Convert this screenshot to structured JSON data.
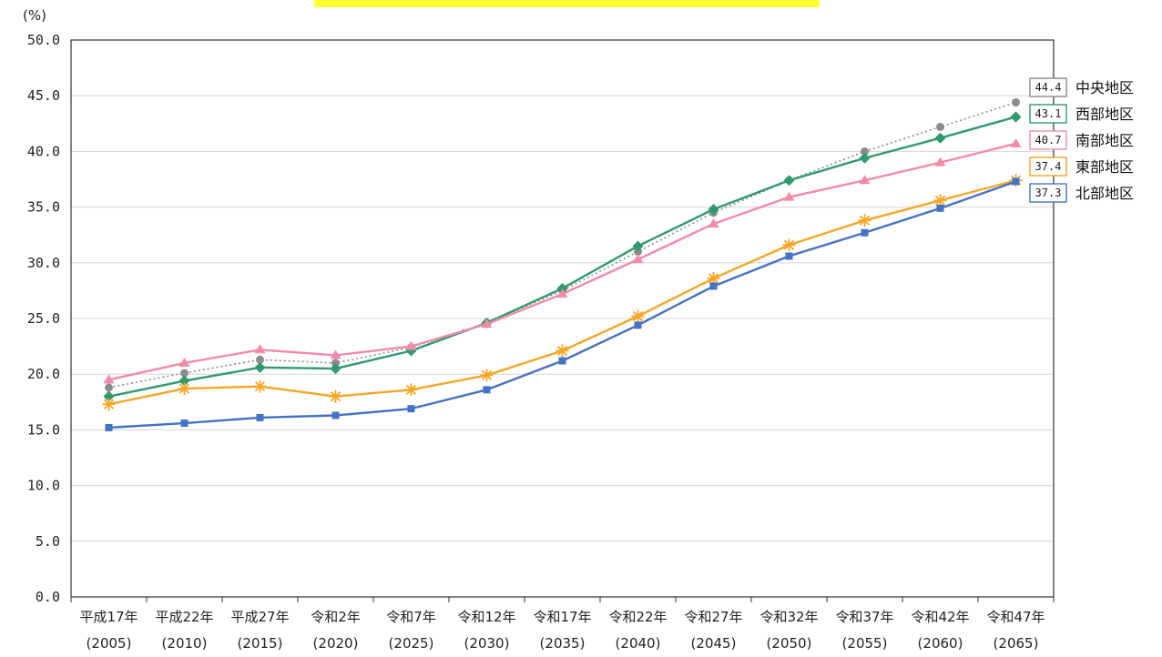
{
  "highlight_color": "#ffff33",
  "chart_data": {
    "type": "line",
    "unit_label": "(%)",
    "ylim": [
      0,
      50
    ],
    "y_ticks": [
      "0.0",
      "5.0",
      "10.0",
      "15.0",
      "20.0",
      "25.0",
      "30.0",
      "35.0",
      "40.0",
      "45.0",
      "50.0"
    ],
    "categories": [
      {
        "era": "平成17年",
        "year": "(2005)"
      },
      {
        "era": "平成22年",
        "year": "(2010)"
      },
      {
        "era": "平成27年",
        "year": "(2015)"
      },
      {
        "era": "令和2年",
        "year": "(2020)"
      },
      {
        "era": "令和7年",
        "year": "(2025)"
      },
      {
        "era": "令和12年",
        "year": "(2030)"
      },
      {
        "era": "令和17年",
        "year": "(2035)"
      },
      {
        "era": "令和22年",
        "year": "(2040)"
      },
      {
        "era": "令和27年",
        "year": "(2045)"
      },
      {
        "era": "令和32年",
        "year": "(2050)"
      },
      {
        "era": "令和37年",
        "year": "(2055)"
      },
      {
        "era": "令和42年",
        "year": "(2060)"
      },
      {
        "era": "令和47年",
        "year": "(2065)"
      }
    ],
    "grid": true,
    "legend_position": "right",
    "series": [
      {
        "name": "中央地区",
        "color": "#8c8c8c",
        "marker": "circle",
        "dash": true,
        "end_label": "44.4",
        "values": [
          18.8,
          20.1,
          21.3,
          21.0,
          22.4,
          24.6,
          27.5,
          31.0,
          34.5,
          37.4,
          40.0,
          42.2,
          44.4
        ]
      },
      {
        "name": "西部地区",
        "color": "#2e9a6e",
        "marker": "diamond",
        "dash": false,
        "end_label": "43.1",
        "values": [
          18.0,
          19.4,
          20.6,
          20.5,
          22.1,
          24.6,
          27.7,
          31.5,
          34.8,
          37.4,
          39.4,
          41.2,
          43.1
        ]
      },
      {
        "name": "南部地区",
        "color": "#f28aa8",
        "marker": "triangle",
        "dash": false,
        "end_label": "40.7",
        "values": [
          19.5,
          21.0,
          22.2,
          21.7,
          22.5,
          24.5,
          27.2,
          30.3,
          33.5,
          35.9,
          37.4,
          39.0,
          40.7
        ]
      },
      {
        "name": "東部地区",
        "color": "#f5a623",
        "marker": "star",
        "dash": false,
        "end_label": "37.4",
        "values": [
          17.3,
          18.7,
          18.9,
          18.0,
          18.6,
          19.9,
          22.1,
          25.2,
          28.6,
          31.6,
          33.8,
          35.6,
          37.4
        ]
      },
      {
        "name": "北部地区",
        "color": "#4472c4",
        "marker": "square",
        "dash": false,
        "end_label": "37.3",
        "values": [
          15.2,
          15.6,
          16.1,
          16.3,
          16.9,
          18.6,
          21.2,
          24.4,
          27.9,
          30.6,
          32.7,
          34.9,
          37.3
        ]
      }
    ]
  }
}
